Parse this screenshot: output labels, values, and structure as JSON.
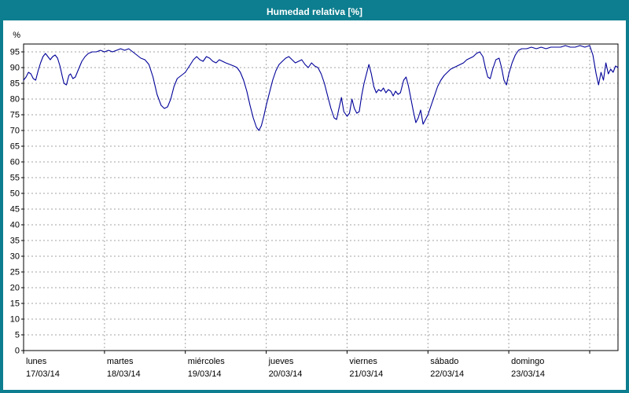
{
  "window": {
    "title": "Humedad relativa [%]"
  },
  "colors": {
    "frame": "#0d7e8f",
    "title_text": "#ffffff",
    "grid": "#a3a3a3",
    "axis": "#000000",
    "line": "#000099",
    "background": "#ffffff"
  },
  "chart_data": {
    "type": "line",
    "title": "Humedad relativa [%]",
    "ylabel": "%",
    "ylim": [
      0,
      97.5
    ],
    "ytick_step": 5,
    "grid": "dashed",
    "legend": "none",
    "x_total_days": 7.35,
    "x_days": [
      {
        "name": "lunes",
        "date": "17/03/14"
      },
      {
        "name": "martes",
        "date": "18/03/14"
      },
      {
        "name": "miércoles",
        "date": "19/03/14"
      },
      {
        "name": "jueves",
        "date": "20/03/14"
      },
      {
        "name": "viernes",
        "date": "21/03/14"
      },
      {
        "name": "sábado",
        "date": "22/03/14"
      },
      {
        "name": "domingo",
        "date": "23/03/14"
      }
    ],
    "series": [
      {
        "name": "Humedad relativa",
        "color": "#000099",
        "points": [
          [
            0.0,
            86
          ],
          [
            0.03,
            87
          ],
          [
            0.06,
            88.5
          ],
          [
            0.09,
            88
          ],
          [
            0.12,
            86.5
          ],
          [
            0.15,
            86
          ],
          [
            0.18,
            89
          ],
          [
            0.21,
            91.5
          ],
          [
            0.24,
            93.5
          ],
          [
            0.27,
            94.5
          ],
          [
            0.3,
            93.5
          ],
          [
            0.33,
            92.5
          ],
          [
            0.36,
            93.5
          ],
          [
            0.39,
            94
          ],
          [
            0.42,
            93
          ],
          [
            0.45,
            90.5
          ],
          [
            0.48,
            87
          ],
          [
            0.5,
            85
          ],
          [
            0.53,
            84.5
          ],
          [
            0.56,
            87.5
          ],
          [
            0.58,
            88
          ],
          [
            0.61,
            86.5
          ],
          [
            0.64,
            87
          ],
          [
            0.68,
            89.5
          ],
          [
            0.72,
            92
          ],
          [
            0.76,
            93.5
          ],
          [
            0.8,
            94.5
          ],
          [
            0.85,
            95
          ],
          [
            0.9,
            95
          ],
          [
            0.95,
            95.5
          ],
          [
            1.0,
            95
          ],
          [
            1.05,
            95.5
          ],
          [
            1.1,
            95
          ],
          [
            1.15,
            95.5
          ],
          [
            1.2,
            96
          ],
          [
            1.25,
            95.5
          ],
          [
            1.3,
            96
          ],
          [
            1.35,
            95
          ],
          [
            1.4,
            94
          ],
          [
            1.45,
            93
          ],
          [
            1.5,
            92.5
          ],
          [
            1.55,
            91
          ],
          [
            1.6,
            87
          ],
          [
            1.65,
            81.5
          ],
          [
            1.7,
            78
          ],
          [
            1.74,
            77
          ],
          [
            1.78,
            77.5
          ],
          [
            1.82,
            80
          ],
          [
            1.86,
            84
          ],
          [
            1.9,
            86.5
          ],
          [
            1.95,
            87.5
          ],
          [
            2.0,
            88.5
          ],
          [
            2.05,
            90.5
          ],
          [
            2.1,
            92.5
          ],
          [
            2.14,
            93.5
          ],
          [
            2.18,
            92.5
          ],
          [
            2.22,
            92
          ],
          [
            2.26,
            93.5
          ],
          [
            2.3,
            93
          ],
          [
            2.34,
            92
          ],
          [
            2.38,
            91.5
          ],
          [
            2.42,
            92.5
          ],
          [
            2.46,
            92
          ],
          [
            2.5,
            91.5
          ],
          [
            2.55,
            91
          ],
          [
            2.6,
            90.5
          ],
          [
            2.64,
            90
          ],
          [
            2.68,
            88.5
          ],
          [
            2.72,
            86
          ],
          [
            2.76,
            82.5
          ],
          [
            2.8,
            78
          ],
          [
            2.84,
            74
          ],
          [
            2.88,
            71
          ],
          [
            2.91,
            70
          ],
          [
            2.94,
            71.5
          ],
          [
            2.97,
            74.5
          ],
          [
            3.0,
            78
          ],
          [
            3.04,
            82
          ],
          [
            3.08,
            86
          ],
          [
            3.12,
            89
          ],
          [
            3.16,
            91
          ],
          [
            3.2,
            92
          ],
          [
            3.24,
            93
          ],
          [
            3.28,
            93.5
          ],
          [
            3.32,
            92.5
          ],
          [
            3.36,
            91.5
          ],
          [
            3.4,
            92
          ],
          [
            3.44,
            92.5
          ],
          [
            3.48,
            91
          ],
          [
            3.52,
            90
          ],
          [
            3.56,
            91.5
          ],
          [
            3.6,
            90.5
          ],
          [
            3.64,
            90
          ],
          [
            3.68,
            88
          ],
          [
            3.72,
            85
          ],
          [
            3.76,
            81
          ],
          [
            3.8,
            77
          ],
          [
            3.84,
            74
          ],
          [
            3.87,
            73.5
          ],
          [
            3.9,
            77
          ],
          [
            3.93,
            80.5
          ],
          [
            3.96,
            76
          ],
          [
            4.0,
            74.5
          ],
          [
            4.03,
            75.5
          ],
          [
            4.06,
            80
          ],
          [
            4.09,
            77
          ],
          [
            4.12,
            75.5
          ],
          [
            4.15,
            76
          ],
          [
            4.18,
            81
          ],
          [
            4.21,
            85
          ],
          [
            4.24,
            88
          ],
          [
            4.27,
            91
          ],
          [
            4.3,
            88
          ],
          [
            4.33,
            84
          ],
          [
            4.36,
            82
          ],
          [
            4.39,
            83
          ],
          [
            4.42,
            82.5
          ],
          [
            4.45,
            83.5
          ],
          [
            4.48,
            82
          ],
          [
            4.51,
            83
          ],
          [
            4.54,
            82.5
          ],
          [
            4.57,
            81
          ],
          [
            4.6,
            82.5
          ],
          [
            4.63,
            81.5
          ],
          [
            4.66,
            82
          ],
          [
            4.7,
            86
          ],
          [
            4.73,
            87
          ],
          [
            4.76,
            84
          ],
          [
            4.79,
            80
          ],
          [
            4.82,
            76
          ],
          [
            4.85,
            72.5
          ],
          [
            4.88,
            74
          ],
          [
            4.91,
            76.5
          ],
          [
            4.94,
            72
          ],
          [
            4.97,
            73.5
          ],
          [
            5.0,
            75
          ],
          [
            5.04,
            78
          ],
          [
            5.08,
            81
          ],
          [
            5.12,
            84
          ],
          [
            5.16,
            86
          ],
          [
            5.2,
            87.5
          ],
          [
            5.24,
            88.5
          ],
          [
            5.28,
            89.5
          ],
          [
            5.32,
            90
          ],
          [
            5.36,
            90.5
          ],
          [
            5.4,
            91
          ],
          [
            5.44,
            91.5
          ],
          [
            5.48,
            92.5
          ],
          [
            5.52,
            93
          ],
          [
            5.56,
            93.5
          ],
          [
            5.6,
            94.5
          ],
          [
            5.64,
            95
          ],
          [
            5.68,
            93.5
          ],
          [
            5.71,
            90
          ],
          [
            5.74,
            87
          ],
          [
            5.77,
            86.5
          ],
          [
            5.8,
            89.5
          ],
          [
            5.84,
            92.5
          ],
          [
            5.88,
            93
          ],
          [
            5.91,
            90
          ],
          [
            5.94,
            86
          ],
          [
            5.97,
            84.5
          ],
          [
            6.0,
            88
          ],
          [
            6.04,
            91.5
          ],
          [
            6.08,
            94
          ],
          [
            6.12,
            95.5
          ],
          [
            6.16,
            96
          ],
          [
            6.22,
            96
          ],
          [
            6.28,
            96.5
          ],
          [
            6.34,
            96
          ],
          [
            6.4,
            96.5
          ],
          [
            6.46,
            96
          ],
          [
            6.52,
            96.5
          ],
          [
            6.58,
            96.5
          ],
          [
            6.64,
            96.5
          ],
          [
            6.7,
            97
          ],
          [
            6.76,
            96.5
          ],
          [
            6.82,
            96.5
          ],
          [
            6.88,
            97
          ],
          [
            6.94,
            96.5
          ],
          [
            7.0,
            97
          ],
          [
            7.04,
            94
          ],
          [
            7.08,
            88
          ],
          [
            7.11,
            84.5
          ],
          [
            7.14,
            88.5
          ],
          [
            7.17,
            86
          ],
          [
            7.2,
            91.5
          ],
          [
            7.23,
            88
          ],
          [
            7.26,
            89.5
          ],
          [
            7.29,
            88.5
          ],
          [
            7.32,
            90.5
          ],
          [
            7.35,
            90
          ]
        ]
      }
    ]
  }
}
